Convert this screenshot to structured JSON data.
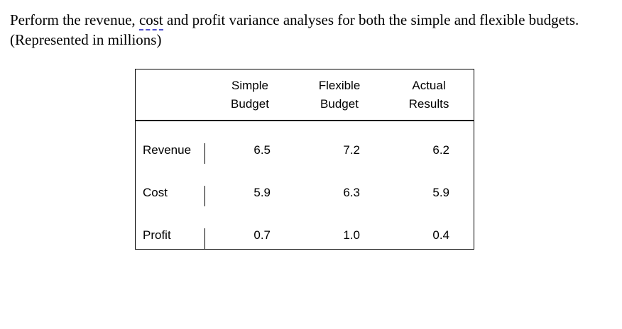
{
  "question": {
    "part1": "Perform the revenue, ",
    "underlined_word": "cost",
    "part2": " and profit variance analyses for both the simple and flexible budgets. (Represented in millions)"
  },
  "colors": {
    "spellcheck_underline": "#4f4fd0",
    "text": "#000000",
    "background": "#ffffff",
    "table_border": "#000000"
  },
  "table": {
    "columns": [
      {
        "line1": "Simple",
        "line2": "Budget"
      },
      {
        "line1": "Flexible",
        "line2": "Budget"
      },
      {
        "line1": "Actual",
        "line2": "Results"
      }
    ],
    "rows": [
      {
        "label": "Revenue",
        "simple": "6.5",
        "flexible": "7.2",
        "actual": "6.2"
      },
      {
        "label": "Cost",
        "simple": "5.9",
        "flexible": "6.3",
        "actual": "5.9"
      },
      {
        "label": "Profit",
        "simple": "0.7",
        "flexible": "1.0",
        "actual": "0.4"
      }
    ]
  }
}
